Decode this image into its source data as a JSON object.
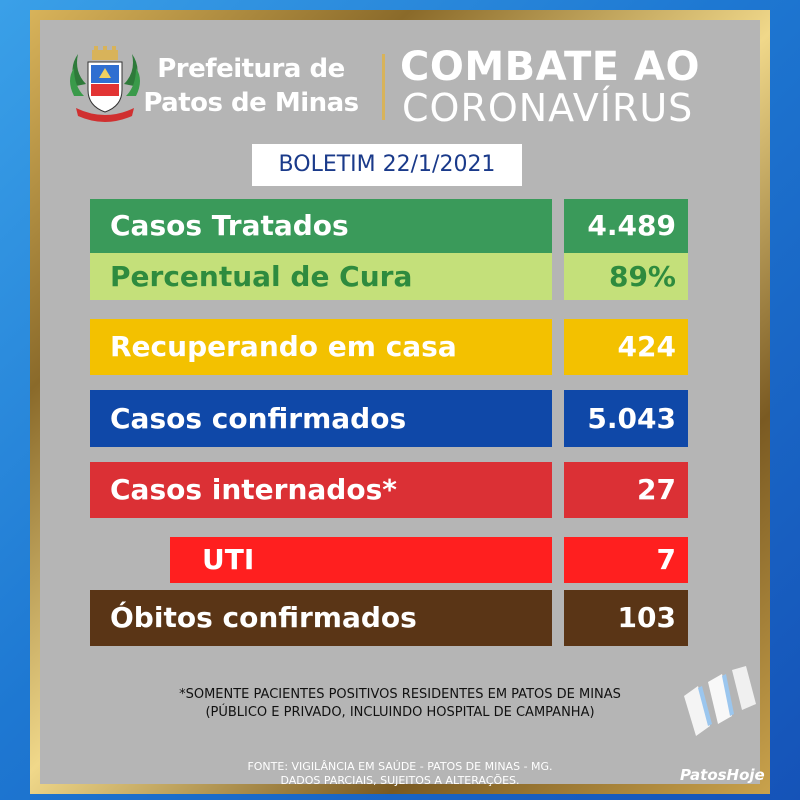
{
  "header": {
    "pref_line1": "Prefeitura de",
    "pref_line2": "Patos de Minas",
    "title_line1": "COMBATE AO",
    "title_line2": "CORONAVÍRUS"
  },
  "boletim": "BOLETIM 22/1/2021",
  "rows": [
    {
      "label": "Casos Tratados",
      "value": "4.489",
      "label_color": "#3a9a5a",
      "value_color": "#3a9a5a",
      "text_color": "#ffffff"
    },
    {
      "label": "Percentual de Cura",
      "value": "89%",
      "label_color": "#c4e07a",
      "value_color": "#c4e07a",
      "text_color": "#2e8b3e"
    },
    {
      "label": "Recuperando em casa",
      "value": "424",
      "label_color": "#f3c100",
      "value_color": "#f3c100",
      "text_color": "#ffffff"
    },
    {
      "label": "Casos confirmados",
      "value": "5.043",
      "label_color": "#0f48a8",
      "value_color": "#0f48a8",
      "text_color": "#ffffff"
    },
    {
      "label": "Casos internados*",
      "value": "27",
      "label_color": "#db3035",
      "value_color": "#db3035",
      "text_color": "#ffffff"
    },
    {
      "label": "UTI",
      "value": "7",
      "label_color": "#ff1f1f",
      "value_color": "#ff1f1f",
      "text_color": "#ffffff"
    },
    {
      "label": "Óbitos confirmados",
      "value": "103",
      "label_color": "#5a3516",
      "value_color": "#5a3516",
      "text_color": "#ffffff"
    }
  ],
  "note": {
    "line1": "*SOMENTE PACIENTES POSITIVOS RESIDENTES EM PATOS DE MINAS",
    "line2": "(PÚBLICO E PRIVADO, INCLUINDO HOSPITAL DE CAMPANHA)"
  },
  "fonte": {
    "line1": "FONTE: VIGILÂNCIA EM SAÚDE - PATOS DE MINAS - MG.",
    "line2": "DADOS PARCIAIS, SUJEITOS A ALTERAÇÕES."
  },
  "brand": "PatosHoje",
  "icons": {
    "crest": "city-crest-icon",
    "brand_logo": "patoshoje-logo-icon"
  }
}
